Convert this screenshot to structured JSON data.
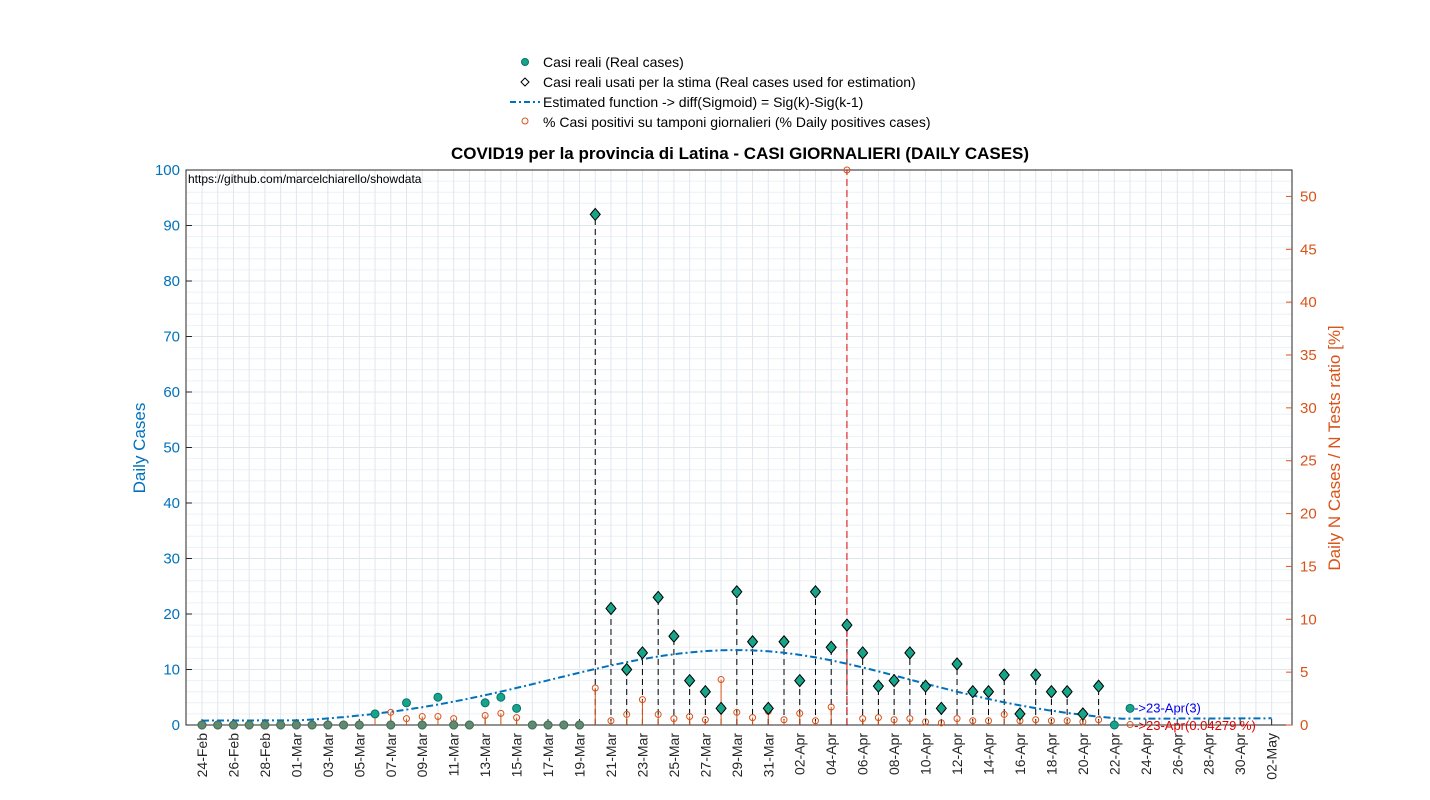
{
  "chart_data": {
    "type": "scatter",
    "title": "COVID19 per la provincia di Latina - CASI GIORNALIERI (DAILY CASES)",
    "annotation_url": "https://github.com/marcelchiarello/showdata",
    "ylabel": "Daily Cases",
    "ylabel_right": "Daily N Cases / N Tests ratio [%]",
    "ylim": [
      0,
      100
    ],
    "ylim_right": [
      0,
      52.5
    ],
    "grid": true,
    "legend_position": "top-center",
    "legend": [
      "Casi reali (Real cases)",
      "Casi reali usati per la stima (Real cases used for estimation)",
      "Estimated function -> diff(Sigmoid) = Sig(k)-Sig(k-1)",
      "% Casi positivi su tamponi giornalieri (% Daily positives cases)"
    ],
    "yticks_left": [
      "0",
      "10",
      "20",
      "30",
      "40",
      "50",
      "60",
      "70",
      "80",
      "90",
      "100"
    ],
    "yticks_right": [
      "0",
      "5",
      "10",
      "15",
      "20",
      "25",
      "30",
      "35",
      "40",
      "45",
      "50"
    ],
    "x_tick_labels": [
      "24-Feb",
      "26-Feb",
      "28-Feb",
      "01-Mar",
      "03-Mar",
      "05-Mar",
      "07-Mar",
      "09-Mar",
      "11-Mar",
      "13-Mar",
      "15-Mar",
      "17-Mar",
      "19-Mar",
      "21-Mar",
      "23-Mar",
      "25-Mar",
      "27-Mar",
      "29-Mar",
      "31-Mar",
      "02-Apr",
      "04-Apr",
      "06-Apr",
      "08-Apr",
      "10-Apr",
      "12-Apr",
      "14-Apr",
      "16-Apr",
      "18-Apr",
      "20-Apr",
      "22-Apr",
      "24-Apr",
      "26-Apr",
      "28-Apr",
      "30-Apr",
      "02-May"
    ],
    "dates": [
      "24-Feb",
      "25-Feb",
      "26-Feb",
      "27-Feb",
      "28-Feb",
      "29-Feb",
      "01-Mar",
      "02-Mar",
      "03-Mar",
      "04-Mar",
      "05-Mar",
      "06-Mar",
      "07-Mar",
      "08-Mar",
      "09-Mar",
      "10-Mar",
      "11-Mar",
      "12-Mar",
      "13-Mar",
      "14-Mar",
      "15-Mar",
      "16-Mar",
      "17-Mar",
      "18-Mar",
      "19-Mar",
      "20-Mar",
      "21-Mar",
      "22-Mar",
      "23-Mar",
      "24-Mar",
      "25-Mar",
      "26-Mar",
      "27-Mar",
      "28-Mar",
      "29-Mar",
      "30-Mar",
      "31-Mar",
      "01-Apr",
      "02-Apr",
      "03-Apr",
      "04-Apr",
      "05-Apr",
      "06-Apr",
      "07-Apr",
      "08-Apr",
      "09-Apr",
      "10-Apr",
      "11-Apr",
      "12-Apr",
      "13-Apr",
      "14-Apr",
      "15-Apr",
      "16-Apr",
      "17-Apr",
      "18-Apr",
      "19-Apr",
      "20-Apr",
      "21-Apr",
      "22-Apr",
      "23-Apr"
    ],
    "real_cases": [
      0,
      0,
      0,
      0,
      0,
      0,
      0,
      0,
      0,
      0,
      0,
      2,
      0,
      4,
      0,
      5,
      0,
      0,
      4,
      5,
      3,
      0,
      0,
      0,
      0,
      92,
      21,
      10,
      13,
      23,
      16,
      8,
      6,
      3,
      24,
      15,
      3,
      15,
      8,
      24,
      14,
      18,
      13,
      7,
      8,
      13,
      7,
      3,
      11,
      6,
      6,
      9,
      2,
      9,
      6,
      6,
      2,
      7,
      0,
      3
    ],
    "estimation_cases": [
      92,
      21,
      10,
      13,
      23,
      16,
      8,
      6,
      3,
      24,
      15,
      3,
      15,
      8,
      24,
      14,
      18,
      13,
      7,
      8,
      13,
      7,
      3,
      11,
      6,
      6,
      9,
      2,
      9,
      6,
      6,
      2,
      7
    ],
    "estimation_start_date": "20-Mar",
    "percent_positive": [
      null,
      null,
      null,
      null,
      null,
      null,
      null,
      null,
      null,
      null,
      null,
      1.0,
      1.2,
      0.6,
      0.8,
      0.8,
      0.6,
      null,
      0.9,
      1.1,
      0.7,
      null,
      null,
      null,
      null,
      3.5,
      0.4,
      1.0,
      2.4,
      1.0,
      0.6,
      0.8,
      0.5,
      4.3,
      1.2,
      0.7,
      1.3,
      0.5,
      1.1,
      0.4,
      1.7,
      52.5,
      0.6,
      0.7,
      0.5,
      0.6,
      0.3,
      0.2,
      0.6,
      0.4,
      0.4,
      1.0,
      0.4,
      0.5,
      0.4,
      0.4,
      0.3,
      0.5,
      0.1,
      0.04279
    ],
    "estimated_function": {
      "name": "Estimated function -> diff(Sigmoid) = Sig(k)-Sig(k-1)",
      "peak_value": 13.5,
      "peak_date": "29-Mar",
      "x_range": [
        "24-Feb",
        "02-May"
      ],
      "start_value": 0.8,
      "end_value": 1.2
    },
    "annotations": {
      "last_case": "->23-Apr(3)",
      "last_percent": "->23-Apr(0.04279 %)"
    }
  }
}
